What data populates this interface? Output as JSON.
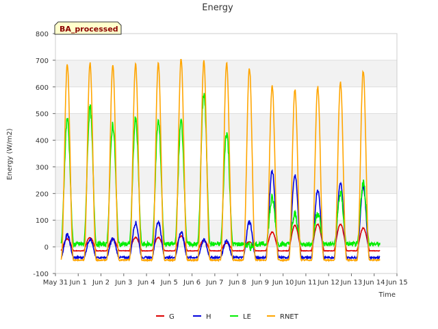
{
  "chart_data": {
    "type": "line",
    "title": "Energy",
    "xlabel": "Time",
    "ylabel": "Energy (W/m2)",
    "badge": "BA_processed",
    "xlim": [
      0,
      15
    ],
    "ylim": [
      -100,
      800
    ],
    "x_tick_values": [
      0,
      1,
      2,
      3,
      4,
      5,
      6,
      7,
      8,
      9,
      10,
      11,
      12,
      13,
      14,
      15
    ],
    "x_tick_labels": [
      "May 31",
      "Jun 1",
      "Jun 2",
      "Jun 3",
      "Jun 4",
      "Jun 5",
      "Jun 6",
      "Jun 7",
      "Jun 8",
      "Jun 9",
      "Jun 10",
      "Jun 11",
      "Jun 12",
      "Jun 13",
      "Jun 14",
      "Jun 15"
    ],
    "y_ticks": [
      -100,
      0,
      100,
      200,
      300,
      400,
      500,
      600,
      700,
      800
    ],
    "grid": true,
    "bands": "alternating horizontal grey bands",
    "legend_position": "bottom",
    "x_start": 0.25,
    "x_end": 14.25,
    "series": [
      {
        "name": "G",
        "color": "#dd0000",
        "night": -15,
        "daily_peak": [
          30,
          35,
          30,
          35,
          35,
          40,
          25,
          15,
          20,
          55,
          80,
          85,
          85,
          70,
          65
        ]
      },
      {
        "name": "H",
        "color": "#0000dd",
        "night": -40,
        "daily_peak": [
          45,
          30,
          30,
          90,
          95,
          55,
          25,
          25,
          95,
          285,
          270,
          215,
          240,
          225,
          305
        ]
      },
      {
        "name": "LE",
        "color": "#00ee00",
        "night": 10,
        "daily_peak": [
          480,
          520,
          460,
          475,
          470,
          470,
          575,
          430,
          0,
          180,
          120,
          130,
          200,
          240,
          170
        ]
      },
      {
        "name": "RNET",
        "color": "#ffa500",
        "night": -50,
        "daily_peak": [
          685,
          690,
          685,
          685,
          690,
          705,
          695,
          690,
          670,
          605,
          590,
          600,
          615,
          660,
          0
        ]
      }
    ]
  }
}
